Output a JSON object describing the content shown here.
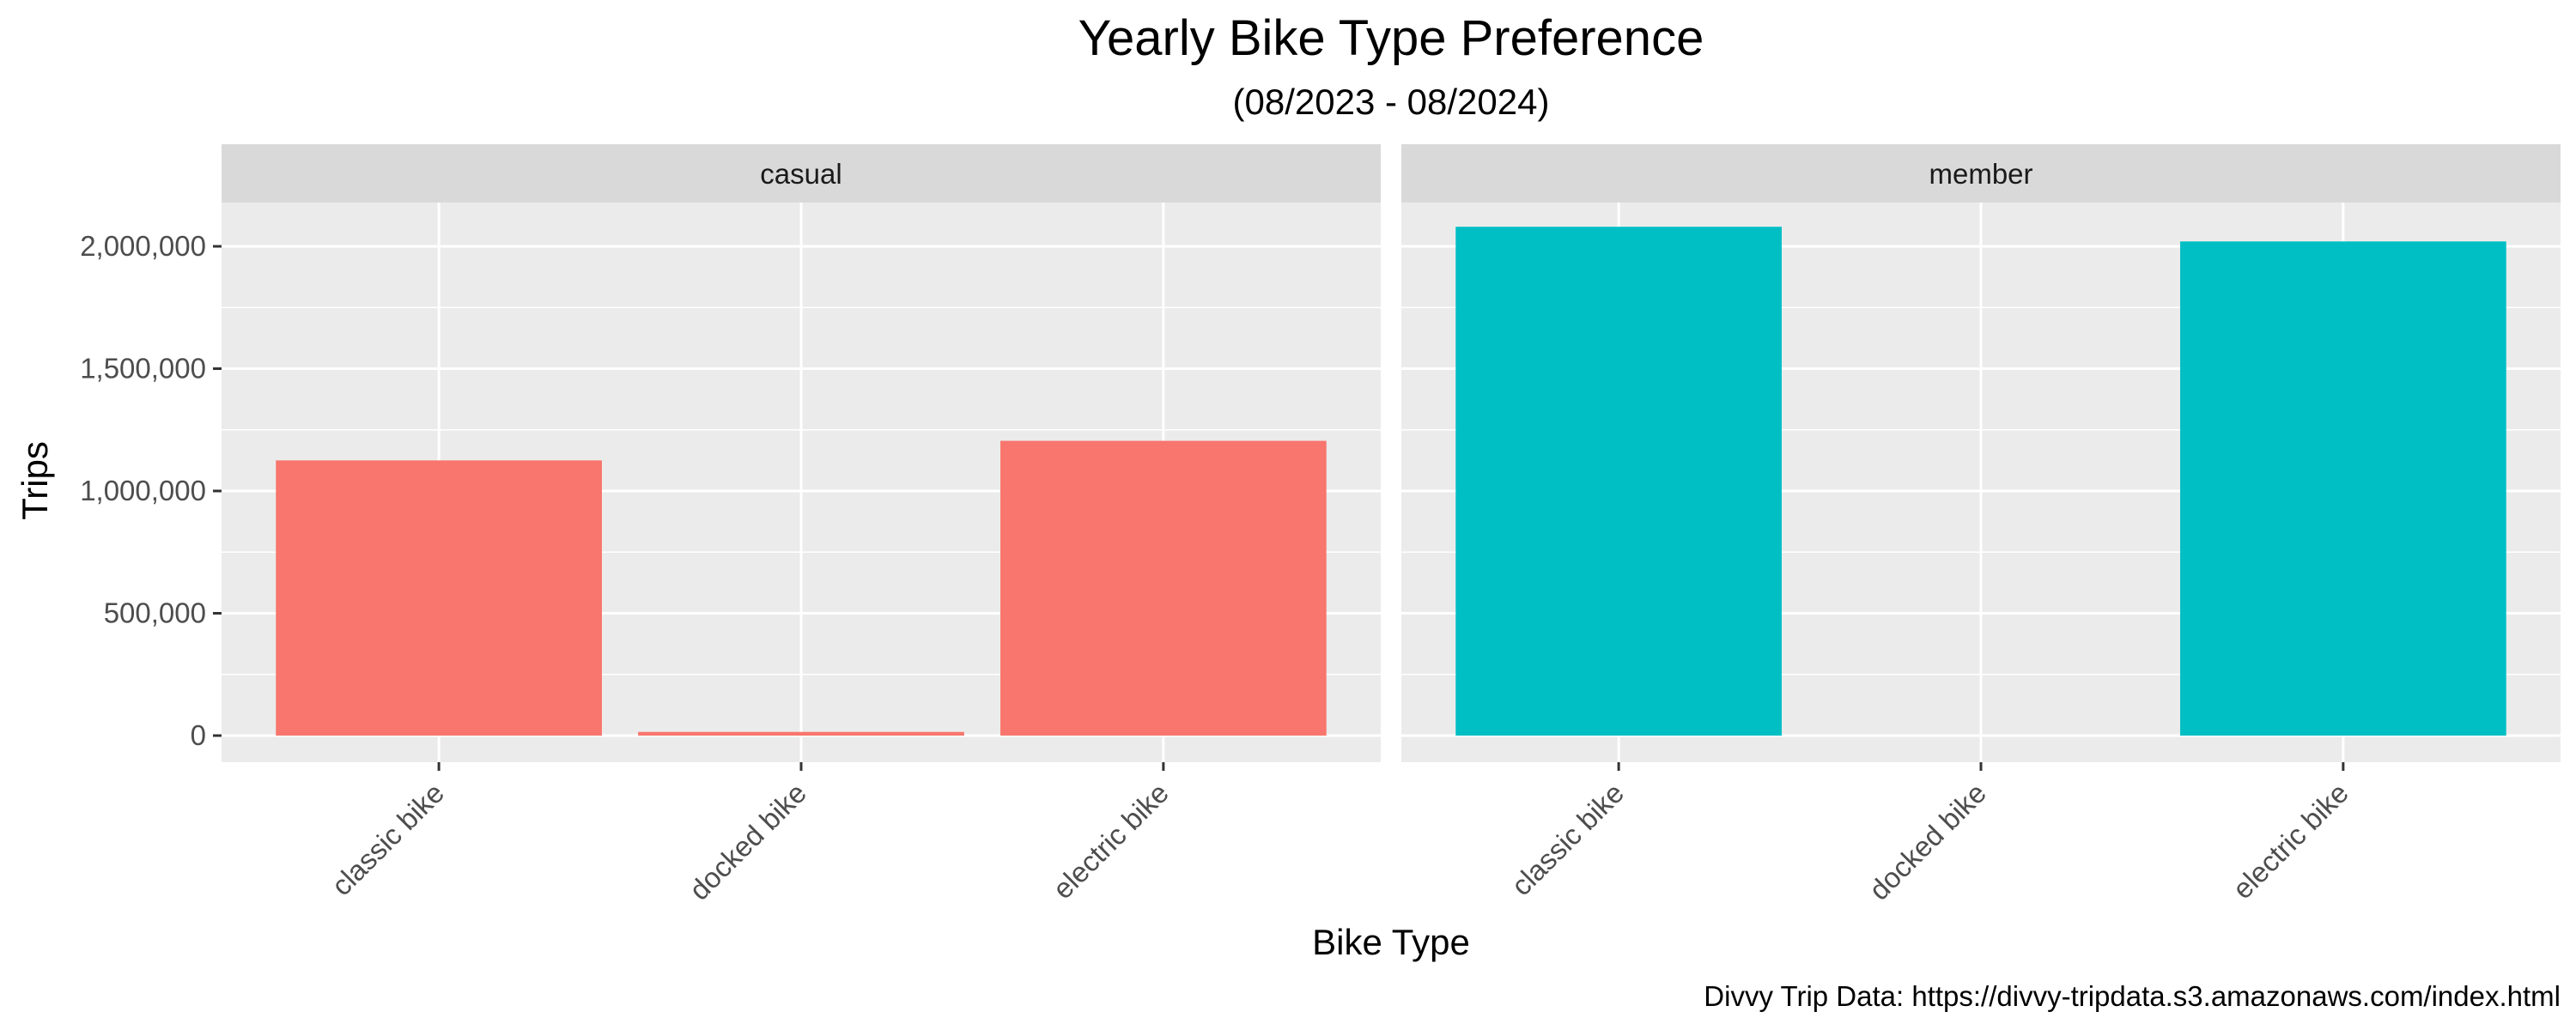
{
  "chart_data": {
    "type": "bar",
    "title": "Yearly Bike Type Preference",
    "subtitle": "(08/2023 - 08/2024)",
    "xlabel": "Bike Type",
    "ylabel": "Trips",
    "caption": "Divvy Trip Data: https://divvy-tripdata.s3.amazonaws.com/index.html",
    "categories": [
      "classic bike",
      "docked bike",
      "electric bike"
    ],
    "ylim": [
      0,
      2400000
    ],
    "yticks": [
      0,
      500000,
      1000000,
      1500000,
      2000000
    ],
    "ytick_labels": [
      "0",
      "500,000",
      "1,000,000",
      "1,500,000",
      "2,000,000"
    ],
    "grid": true,
    "legend": "none",
    "facets": [
      {
        "label": "casual",
        "color": "#F8766D",
        "values": [
          1125000,
          15000,
          1205000
        ]
      },
      {
        "label": "member",
        "color": "#00BFC4",
        "values": [
          2080000,
          0,
          2020000
        ]
      }
    ]
  }
}
